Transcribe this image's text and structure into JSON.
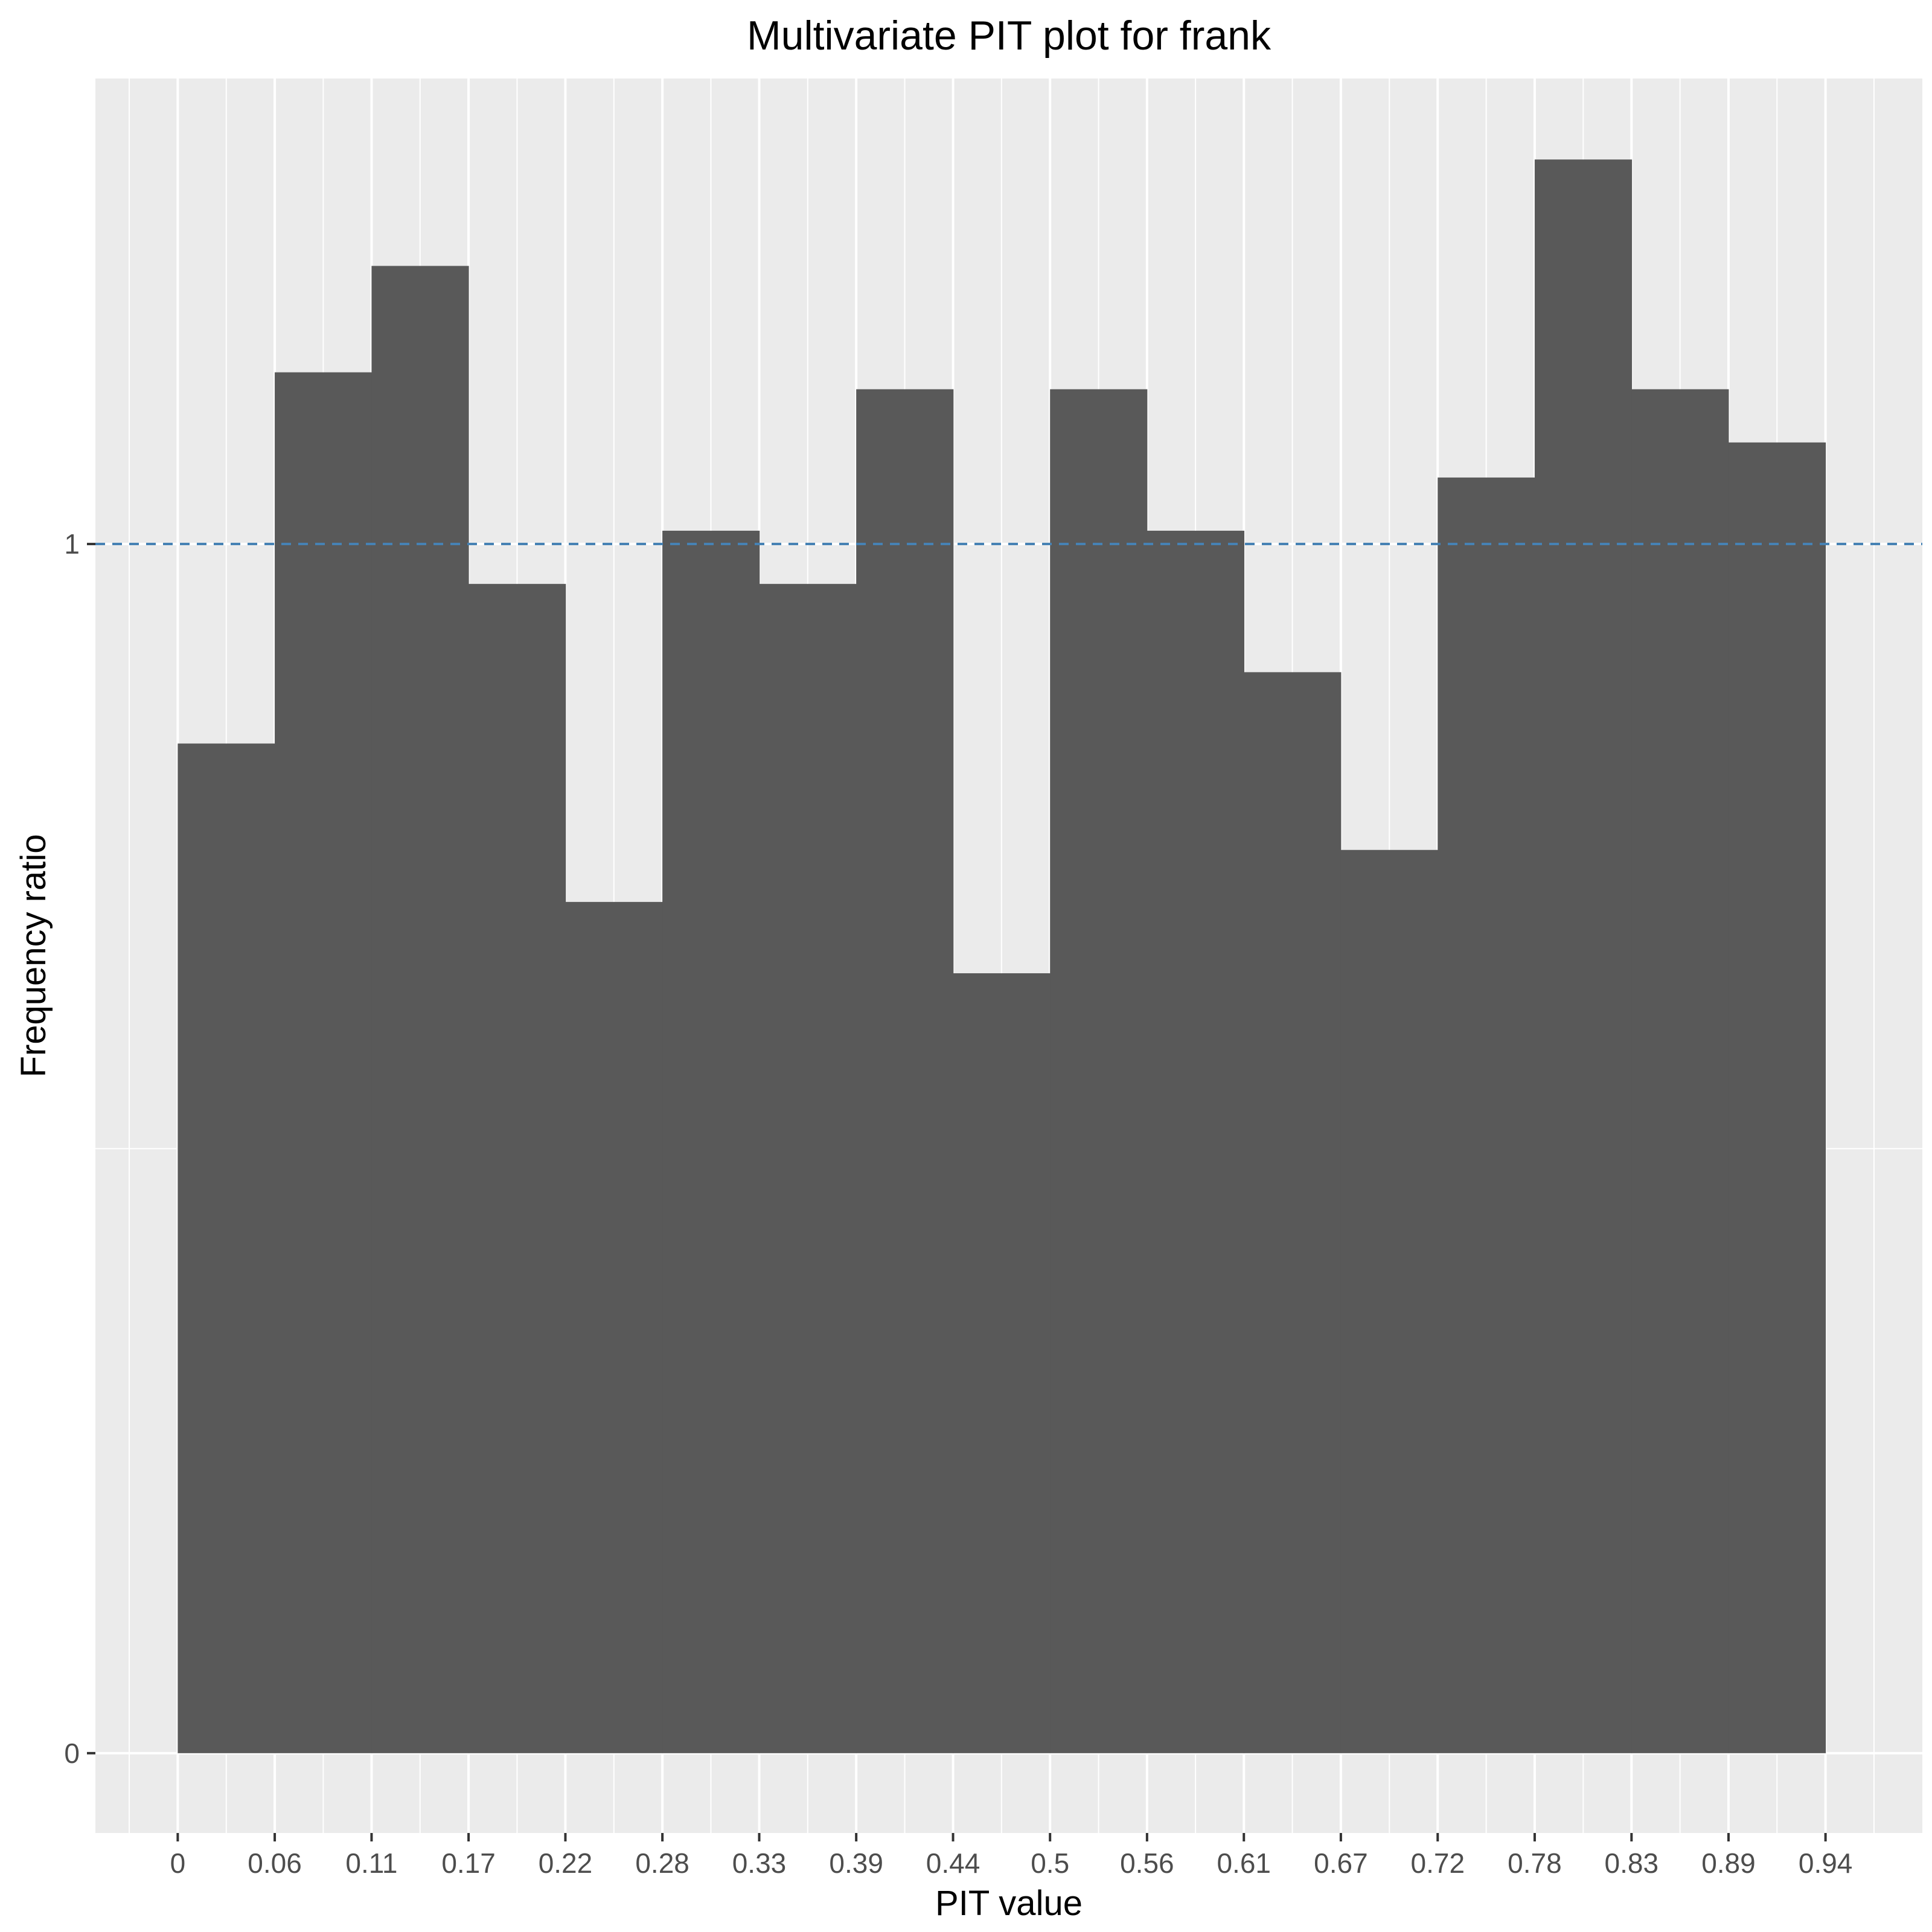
{
  "chart_data": {
    "type": "bar",
    "title": "Multivariate PIT plot for frank",
    "xlabel": "PIT value",
    "ylabel": "Frequency ratio",
    "x_tick_labels": [
      "0",
      "0.06",
      "0.11",
      "0.17",
      "0.22",
      "0.28",
      "0.33",
      "0.39",
      "0.44",
      "0.5",
      "0.56",
      "0.61",
      "0.67",
      "0.72",
      "0.78",
      "0.83",
      "0.89",
      "0.94"
    ],
    "y_tick_labels": [
      "0",
      "1"
    ],
    "bin_width": 0.0556,
    "bin_starts": [
      0,
      0.0556,
      0.1111,
      0.1667,
      0.2222,
      0.2778,
      0.3333,
      0.3889,
      0.4444,
      0.5,
      0.5556,
      0.6111,
      0.6667,
      0.7222,
      0.7778,
      0.8333,
      0.8889
    ],
    "values": [
      0.835,
      1.142,
      1.23,
      0.967,
      0.704,
      1.011,
      0.967,
      1.128,
      0.645,
      1.128,
      1.011,
      0.894,
      0.747,
      1.055,
      1.318,
      1.128,
      1.084
    ],
    "xlim": [
      -0.0472,
      1.0
    ],
    "ylim": [
      -0.066,
      1.385
    ],
    "reference_line": {
      "y": 1,
      "style": "dashed",
      "color": "#4682b4"
    },
    "bar_color": "#595959",
    "panel_background": "#ebebeb",
    "grid": true,
    "legend": "none"
  }
}
